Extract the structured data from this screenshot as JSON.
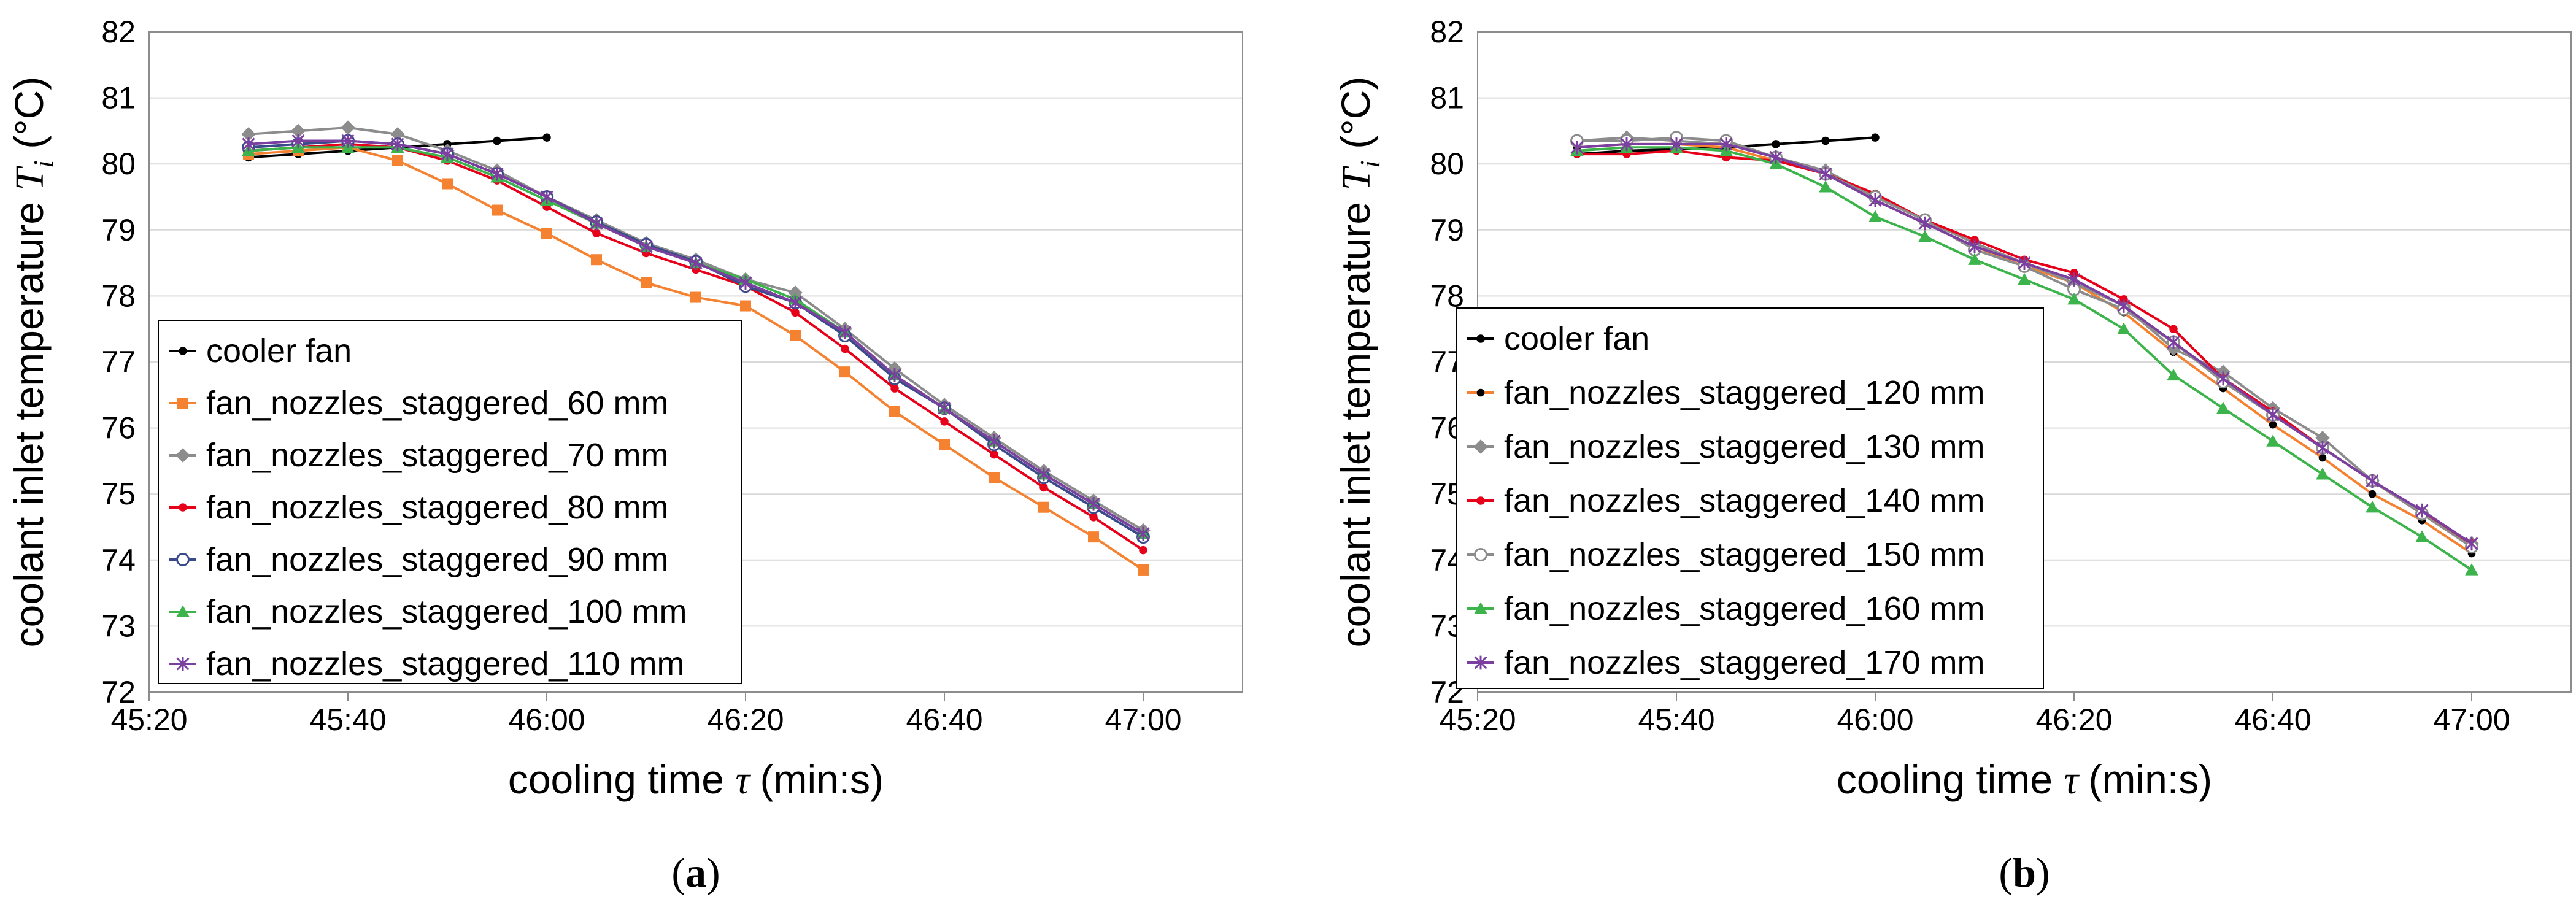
{
  "chart_data": [
    {
      "type": "line",
      "panel": "a",
      "panel_label": "(a)",
      "xlabel_main": "cooling time",
      "xlabel_symbol": "τ",
      "xlabel_unit": "(min:s)",
      "ylabel_main": "coolant inlet temperature",
      "ylabel_symbol": "T",
      "ylabel_sub": "i",
      "ylabel_unit": "(°C)",
      "xlim": [
        2720,
        2830
      ],
      "ylim": [
        72,
        82
      ],
      "x_ticks": [
        2720,
        2740,
        2760,
        2780,
        2800,
        2820
      ],
      "x_tick_labels": [
        "45:20",
        "45:40",
        "46:00",
        "46:20",
        "46:40",
        "47:00"
      ],
      "y_ticks": [
        72,
        73,
        74,
        75,
        76,
        77,
        78,
        79,
        80,
        81,
        82
      ],
      "y_tick_labels": [
        "72",
        "73",
        "74",
        "75",
        "76",
        "77",
        "78",
        "79",
        "80",
        "81",
        "82"
      ],
      "legend_position": "lower-left",
      "series": [
        {
          "name": "cooler fan",
          "color": "#000000",
          "marker": "dot",
          "x": [
            2730,
            2735,
            2740,
            2745,
            2750,
            2755,
            2760
          ],
          "y": [
            80.1,
            80.15,
            80.2,
            80.25,
            80.3,
            80.35,
            80.4
          ]
        },
        {
          "name": "fan_nozzles_staggered_60 mm",
          "color": "#f58231",
          "marker": "square",
          "x": [
            2730,
            2735,
            2740,
            2745,
            2750,
            2755,
            2760,
            2765,
            2770,
            2775,
            2780,
            2785,
            2790,
            2795,
            2800,
            2805,
            2810,
            2815,
            2820
          ],
          "y": [
            80.15,
            80.2,
            80.25,
            80.05,
            79.7,
            79.3,
            78.95,
            78.55,
            78.2,
            77.98,
            77.85,
            77.4,
            76.85,
            76.25,
            75.75,
            75.25,
            74.8,
            74.35,
            73.85
          ]
        },
        {
          "name": "fan_nozzles_staggered_70 mm",
          "color": "#8c8c8c",
          "marker": "diamond",
          "x": [
            2730,
            2735,
            2740,
            2745,
            2750,
            2755,
            2760,
            2765,
            2770,
            2775,
            2780,
            2785,
            2790,
            2795,
            2800,
            2805,
            2810,
            2815,
            2820
          ],
          "y": [
            80.45,
            80.5,
            80.55,
            80.45,
            80.2,
            79.9,
            79.5,
            79.15,
            78.8,
            78.55,
            78.25,
            78.05,
            77.5,
            76.9,
            76.35,
            75.85,
            75.35,
            74.9,
            74.45
          ]
        },
        {
          "name": "fan_nozzles_staggered_80 mm",
          "color": "#e6001a",
          "marker": "dot",
          "x": [
            2730,
            2735,
            2740,
            2745,
            2750,
            2755,
            2760,
            2765,
            2770,
            2775,
            2780,
            2785,
            2790,
            2795,
            2800,
            2805,
            2810,
            2815,
            2820
          ],
          "y": [
            80.2,
            80.25,
            80.3,
            80.25,
            80.05,
            79.75,
            79.35,
            78.95,
            78.65,
            78.4,
            78.15,
            77.75,
            77.2,
            76.6,
            76.1,
            75.6,
            75.1,
            74.65,
            74.15
          ]
        },
        {
          "name": "fan_nozzles_staggered_90 mm",
          "color": "#3a4a8a",
          "marker": "circle-open",
          "x": [
            2730,
            2735,
            2740,
            2745,
            2750,
            2755,
            2760,
            2765,
            2770,
            2775,
            2780,
            2785,
            2790,
            2795,
            2800,
            2805,
            2810,
            2815,
            2820
          ],
          "y": [
            80.25,
            80.3,
            80.35,
            80.3,
            80.15,
            79.85,
            79.5,
            79.12,
            78.78,
            78.52,
            78.15,
            77.9,
            77.4,
            76.75,
            76.3,
            75.75,
            75.25,
            74.8,
            74.35
          ]
        },
        {
          "name": "fan_nozzles_staggered_100 mm",
          "color": "#3cb44b",
          "marker": "triangle",
          "x": [
            2730,
            2735,
            2740,
            2745,
            2750,
            2755,
            2760,
            2765,
            2770,
            2775,
            2780,
            2785,
            2790,
            2795,
            2800,
            2805,
            2810,
            2815,
            2820
          ],
          "y": [
            80.2,
            80.25,
            80.25,
            80.25,
            80.1,
            79.8,
            79.45,
            79.1,
            78.75,
            78.5,
            78.25,
            77.95,
            77.45,
            76.8,
            76.3,
            75.8,
            75.3,
            74.85,
            74.4
          ]
        },
        {
          "name": "fan_nozzles_staggered_110 mm",
          "color": "#7b3fa0",
          "marker": "star",
          "x": [
            2730,
            2735,
            2740,
            2745,
            2750,
            2755,
            2760,
            2765,
            2770,
            2775,
            2780,
            2785,
            2790,
            2795,
            2800,
            2805,
            2810,
            2815,
            2820
          ],
          "y": [
            80.3,
            80.35,
            80.35,
            80.3,
            80.15,
            79.85,
            79.5,
            79.1,
            78.75,
            78.5,
            78.2,
            77.9,
            77.45,
            76.8,
            76.3,
            75.8,
            75.3,
            74.85,
            74.4
          ]
        }
      ]
    },
    {
      "type": "line",
      "panel": "b",
      "panel_label": "(b)",
      "xlabel_main": "cooling time",
      "xlabel_symbol": "τ",
      "xlabel_unit": "(min:s)",
      "ylabel_main": "coolant inlet temperature",
      "ylabel_symbol": "T",
      "ylabel_sub": "i",
      "ylabel_unit": "(°C)",
      "xlim": [
        2720,
        2830
      ],
      "ylim": [
        72,
        82
      ],
      "x_ticks": [
        2720,
        2740,
        2760,
        2780,
        2800,
        2820
      ],
      "x_tick_labels": [
        "45:20",
        "45:40",
        "46:00",
        "46:20",
        "46:40",
        "47:00"
      ],
      "y_ticks": [
        72,
        73,
        74,
        75,
        76,
        77,
        78,
        79,
        80,
        81,
        82
      ],
      "y_tick_labels": [
        "72",
        "73",
        "74",
        "75",
        "76",
        "77",
        "78",
        "79",
        "80",
        "81",
        "82"
      ],
      "legend_position": "lower-left",
      "series": [
        {
          "name": "cooler fan",
          "color": "#000000",
          "marker": "dot",
          "x": [
            2730,
            2735,
            2740,
            2745,
            2750,
            2755,
            2760
          ],
          "y": [
            80.15,
            80.2,
            80.22,
            80.25,
            80.3,
            80.35,
            80.4
          ]
        },
        {
          "name": "fan_nozzles_staggered_120 mm",
          "color": "#f58231",
          "marker": "dot-black",
          "x": [
            2730,
            2735,
            2740,
            2745,
            2750,
            2755,
            2760,
            2765,
            2770,
            2775,
            2780,
            2785,
            2790,
            2795,
            2800,
            2805,
            2810,
            2815,
            2820
          ],
          "y": [
            80.25,
            80.3,
            80.3,
            80.25,
            80.05,
            79.85,
            79.45,
            79.1,
            78.75,
            78.45,
            78.2,
            77.75,
            77.15,
            76.6,
            76.05,
            75.55,
            75.0,
            74.6,
            74.1
          ]
        },
        {
          "name": "fan_nozzles_staggered_130 mm",
          "color": "#8c8c8c",
          "marker": "diamond",
          "x": [
            2730,
            2735,
            2740,
            2745,
            2750,
            2755,
            2760,
            2765,
            2770,
            2775,
            2780,
            2785,
            2790,
            2795,
            2800,
            2805,
            2810,
            2815,
            2820
          ],
          "y": [
            80.35,
            80.4,
            80.35,
            80.3,
            80.1,
            79.9,
            79.5,
            79.15,
            78.8,
            78.5,
            78.2,
            77.85,
            77.2,
            76.85,
            76.3,
            75.85,
            75.2,
            74.7,
            74.25
          ]
        },
        {
          "name": "fan_nozzles_staggered_140 mm",
          "color": "#e6001a",
          "marker": "dot",
          "x": [
            2730,
            2735,
            2740,
            2745,
            2750,
            2755,
            2760,
            2765,
            2770,
            2775,
            2780,
            2785,
            2790,
            2795,
            2800,
            2805,
            2810,
            2815,
            2820
          ],
          "y": [
            80.15,
            80.15,
            80.2,
            80.1,
            80.05,
            79.85,
            79.55,
            79.15,
            78.85,
            78.55,
            78.35,
            77.95,
            77.5,
            76.75,
            76.25,
            75.7,
            75.2,
            74.7,
            74.25
          ]
        },
        {
          "name": "fan_nozzles_staggered_150 mm",
          "color": "#8c8c8c",
          "marker": "circle-open",
          "x": [
            2730,
            2735,
            2740,
            2745,
            2750,
            2755,
            2760,
            2765,
            2770,
            2775,
            2780,
            2785,
            2790,
            2795,
            2800,
            2805,
            2810,
            2815,
            2820
          ],
          "y": [
            80.35,
            80.35,
            80.4,
            80.35,
            80.1,
            79.85,
            79.5,
            79.15,
            78.7,
            78.45,
            78.1,
            77.8,
            77.3,
            76.7,
            76.2,
            75.7,
            75.2,
            74.7,
            74.2
          ]
        },
        {
          "name": "fan_nozzles_staggered_160 mm",
          "color": "#3cb44b",
          "marker": "triangle",
          "x": [
            2730,
            2735,
            2740,
            2745,
            2750,
            2755,
            2760,
            2765,
            2770,
            2775,
            2780,
            2785,
            2790,
            2795,
            2800,
            2805,
            2810,
            2815,
            2820
          ],
          "y": [
            80.2,
            80.25,
            80.25,
            80.2,
            80.0,
            79.65,
            79.2,
            78.9,
            78.55,
            78.25,
            77.95,
            77.5,
            76.8,
            76.3,
            75.8,
            75.3,
            74.8,
            74.35,
            73.85
          ]
        },
        {
          "name": "fan_nozzles_staggered_170 mm",
          "color": "#7b3fa0",
          "marker": "star",
          "x": [
            2730,
            2735,
            2740,
            2745,
            2750,
            2755,
            2760,
            2765,
            2770,
            2775,
            2780,
            2785,
            2790,
            2795,
            2800,
            2805,
            2810,
            2815,
            2820
          ],
          "y": [
            80.25,
            80.3,
            80.3,
            80.3,
            80.1,
            79.85,
            79.45,
            79.1,
            78.75,
            78.5,
            78.25,
            77.85,
            77.3,
            76.75,
            76.2,
            75.7,
            75.2,
            74.75,
            74.25
          ]
        }
      ]
    }
  ]
}
